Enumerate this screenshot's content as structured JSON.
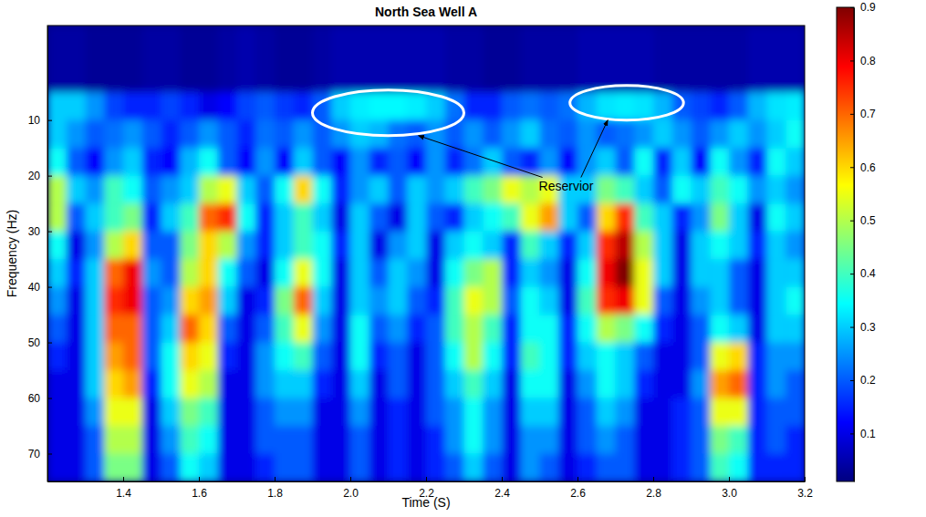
{
  "chart_data": {
    "type": "heatmap",
    "title": "North Sea Well A",
    "x_label": "Time (S)",
    "y_label": "Frequency (Hz)",
    "color": "jet",
    "xlim": [
      1.2,
      3.2
    ],
    "ylim": [
      -7,
      75
    ],
    "xticks": [
      1.4,
      1.6,
      1.8,
      {
        "value": 2,
        "label": "2.0"
      },
      2.2,
      2.4,
      2.6,
      2.8,
      {
        "value": 3,
        "label": "3.0"
      },
      3.2
    ],
    "yticks": [
      10,
      20,
      30,
      40,
      50,
      60,
      70
    ],
    "x_edges": [
      1.2,
      1.25,
      1.3,
      1.35,
      1.4,
      1.45,
      1.5,
      1.55,
      1.6,
      1.65,
      1.7,
      1.75,
      1.8,
      1.85,
      1.9,
      1.95,
      2.0,
      2.05,
      2.1,
      2.15,
      2.2,
      2.25,
      2.3,
      2.35,
      2.4,
      2.45,
      2.5,
      2.55,
      2.6,
      2.65,
      2.7,
      2.75,
      2.8,
      2.85,
      2.9,
      2.95,
      3.0,
      3.05,
      3.1,
      3.15,
      3.2
    ],
    "y_edges": [
      -7,
      5,
      10,
      15,
      20,
      25,
      30,
      35,
      40,
      45,
      50,
      55,
      60,
      65,
      70,
      75
    ],
    "cells": [
      [
        0.04,
        0.04,
        0.03,
        0.03,
        0.03,
        0.04,
        0.04,
        0.03,
        0.03,
        0.04,
        0.05,
        0.04,
        0.03,
        0.03,
        0.04,
        0.05,
        0.05,
        0.05,
        0.05,
        0.05,
        0.05,
        0.04,
        0.04,
        0.03,
        0.03,
        0.04,
        0.04,
        0.04,
        0.05,
        0.05,
        0.05,
        0.05,
        0.04,
        0.04,
        0.04,
        0.04,
        0.04,
        0.05,
        0.05,
        0.05
      ],
      [
        0.3,
        0.3,
        0.25,
        0.18,
        0.15,
        0.15,
        0.18,
        0.15,
        0.1,
        0.12,
        0.18,
        0.2,
        0.17,
        0.15,
        0.2,
        0.3,
        0.33,
        0.34,
        0.34,
        0.33,
        0.3,
        0.22,
        0.15,
        0.15,
        0.2,
        0.22,
        0.2,
        0.22,
        0.28,
        0.32,
        0.33,
        0.32,
        0.28,
        0.2,
        0.18,
        0.15,
        0.2,
        0.28,
        0.32,
        0.33
      ],
      [
        0.3,
        0.25,
        0.2,
        0.22,
        0.25,
        0.2,
        0.15,
        0.2,
        0.25,
        0.2,
        0.15,
        0.22,
        0.2,
        0.25,
        0.2,
        0.25,
        0.3,
        0.28,
        0.22,
        0.2,
        0.25,
        0.2,
        0.25,
        0.2,
        0.25,
        0.3,
        0.22,
        0.2,
        0.25,
        0.2,
        0.22,
        0.25,
        0.3,
        0.25,
        0.2,
        0.25,
        0.3,
        0.25,
        0.3,
        0.35
      ],
      [
        0.35,
        0.2,
        0.12,
        0.25,
        0.3,
        0.15,
        0.12,
        0.28,
        0.35,
        0.2,
        0.12,
        0.25,
        0.12,
        0.3,
        0.2,
        0.12,
        0.25,
        0.15,
        0.2,
        0.12,
        0.25,
        0.15,
        0.22,
        0.3,
        0.2,
        0.15,
        0.25,
        0.12,
        0.25,
        0.3,
        0.2,
        0.35,
        0.15,
        0.3,
        0.12,
        0.35,
        0.25,
        0.15,
        0.35,
        0.3
      ],
      [
        0.5,
        0.3,
        0.25,
        0.4,
        0.35,
        0.2,
        0.25,
        0.3,
        0.5,
        0.55,
        0.3,
        0.2,
        0.35,
        0.6,
        0.35,
        0.15,
        0.25,
        0.3,
        0.2,
        0.3,
        0.25,
        0.3,
        0.4,
        0.45,
        0.55,
        0.5,
        0.55,
        0.3,
        0.3,
        0.45,
        0.4,
        0.3,
        0.2,
        0.35,
        0.3,
        0.4,
        0.35,
        0.25,
        0.3,
        0.25
      ],
      [
        0.5,
        0.2,
        0.3,
        0.4,
        0.45,
        0.15,
        0.3,
        0.4,
        0.7,
        0.75,
        0.35,
        0.15,
        0.3,
        0.4,
        0.3,
        0.1,
        0.3,
        0.2,
        0.1,
        0.3,
        0.2,
        0.15,
        0.3,
        0.35,
        0.4,
        0.55,
        0.65,
        0.3,
        0.2,
        0.6,
        0.75,
        0.4,
        0.3,
        0.15,
        0.25,
        0.45,
        0.3,
        0.1,
        0.35,
        0.3
      ],
      [
        0.35,
        0.1,
        0.25,
        0.5,
        0.6,
        0.2,
        0.2,
        0.45,
        0.6,
        0.5,
        0.25,
        0.15,
        0.3,
        0.4,
        0.35,
        0.15,
        0.3,
        0.1,
        0.25,
        0.3,
        0.1,
        0.3,
        0.35,
        0.3,
        0.15,
        0.4,
        0.3,
        0.15,
        0.3,
        0.75,
        0.85,
        0.5,
        0.3,
        0.1,
        0.3,
        0.35,
        0.3,
        0.15,
        0.3,
        0.25
      ],
      [
        0.3,
        0.15,
        0.3,
        0.7,
        0.8,
        0.25,
        0.2,
        0.5,
        0.6,
        0.35,
        0.2,
        0.1,
        0.35,
        0.55,
        0.35,
        0.1,
        0.3,
        0.2,
        0.3,
        0.25,
        0.1,
        0.35,
        0.45,
        0.5,
        0.15,
        0.3,
        0.25,
        0.1,
        0.35,
        0.8,
        0.9,
        0.55,
        0.3,
        0.1,
        0.3,
        0.3,
        0.2,
        0.1,
        0.3,
        0.3
      ],
      [
        0.25,
        0.1,
        0.3,
        0.75,
        0.8,
        0.2,
        0.25,
        0.6,
        0.65,
        0.3,
        0.1,
        0.15,
        0.45,
        0.7,
        0.3,
        0.1,
        0.3,
        0.25,
        0.3,
        0.2,
        0.15,
        0.4,
        0.55,
        0.5,
        0.2,
        0.35,
        0.3,
        0.1,
        0.4,
        0.75,
        0.8,
        0.55,
        0.2,
        0.1,
        0.25,
        0.3,
        0.2,
        0.1,
        0.3,
        0.35
      ],
      [
        0.2,
        0.1,
        0.3,
        0.7,
        0.7,
        0.2,
        0.3,
        0.7,
        0.6,
        0.2,
        0.1,
        0.2,
        0.4,
        0.55,
        0.25,
        0.1,
        0.35,
        0.2,
        0.25,
        0.15,
        0.2,
        0.4,
        0.5,
        0.4,
        0.15,
        0.35,
        0.35,
        0.15,
        0.35,
        0.5,
        0.45,
        0.35,
        0.15,
        0.1,
        0.2,
        0.35,
        0.3,
        0.1,
        0.3,
        0.3
      ],
      [
        0.15,
        0.1,
        0.3,
        0.65,
        0.7,
        0.2,
        0.35,
        0.6,
        0.55,
        0.15,
        0.1,
        0.25,
        0.35,
        0.4,
        0.2,
        0.1,
        0.35,
        0.15,
        0.2,
        0.1,
        0.2,
        0.35,
        0.5,
        0.35,
        0.15,
        0.4,
        0.35,
        0.15,
        0.3,
        0.35,
        0.3,
        0.2,
        0.1,
        0.1,
        0.2,
        0.55,
        0.6,
        0.15,
        0.25,
        0.25
      ],
      [
        0.1,
        0.1,
        0.3,
        0.6,
        0.65,
        0.15,
        0.35,
        0.55,
        0.5,
        0.1,
        0.1,
        0.25,
        0.3,
        0.3,
        0.15,
        0.1,
        0.3,
        0.1,
        0.2,
        0.1,
        0.2,
        0.3,
        0.4,
        0.3,
        0.1,
        0.35,
        0.35,
        0.1,
        0.25,
        0.35,
        0.3,
        0.15,
        0.1,
        0.1,
        0.25,
        0.65,
        0.7,
        0.15,
        0.25,
        0.2
      ],
      [
        0.1,
        0.1,
        0.25,
        0.55,
        0.55,
        0.1,
        0.3,
        0.45,
        0.4,
        0.1,
        0.1,
        0.2,
        0.25,
        0.25,
        0.1,
        0.1,
        0.25,
        0.1,
        0.15,
        0.1,
        0.2,
        0.25,
        0.35,
        0.25,
        0.1,
        0.3,
        0.3,
        0.1,
        0.2,
        0.3,
        0.25,
        0.1,
        0.1,
        0.15,
        0.2,
        0.55,
        0.55,
        0.15,
        0.2,
        0.2
      ],
      [
        0.1,
        0.1,
        0.2,
        0.5,
        0.5,
        0.1,
        0.25,
        0.4,
        0.35,
        0.1,
        0.1,
        0.2,
        0.2,
        0.2,
        0.1,
        0.1,
        0.2,
        0.1,
        0.15,
        0.1,
        0.15,
        0.25,
        0.35,
        0.25,
        0.1,
        0.25,
        0.25,
        0.1,
        0.2,
        0.25,
        0.2,
        0.1,
        0.1,
        0.15,
        0.2,
        0.45,
        0.4,
        0.15,
        0.2,
        0.15
      ],
      [
        0.1,
        0.1,
        0.2,
        0.45,
        0.45,
        0.1,
        0.2,
        0.35,
        0.3,
        0.1,
        0.1,
        0.15,
        0.2,
        0.2,
        0.1,
        0.1,
        0.2,
        0.1,
        0.15,
        0.1,
        0.15,
        0.2,
        0.3,
        0.2,
        0.1,
        0.25,
        0.2,
        0.1,
        0.15,
        0.2,
        0.2,
        0.1,
        0.1,
        0.15,
        0.2,
        0.4,
        0.35,
        0.15,
        0.15,
        0.15
      ]
    ],
    "colorbar": {
      "range": [
        0.01,
        0.9
      ],
      "ticks": [
        0.1,
        0.2,
        0.3,
        0.4,
        0.5,
        0.6,
        0.7,
        0.8,
        0.9
      ]
    },
    "highlights": [
      {
        "x0": 1.9,
        "x1": 2.3,
        "y0": 4.6,
        "y1": 12.8
      },
      {
        "x0": 2.58,
        "x1": 2.88,
        "y0": 3.8,
        "y1": 10
      }
    ],
    "annotations": [
      {
        "text": "Reservior",
        "x": 2.57,
        "y": 22,
        "targets": [
          {
            "x": 2.18,
            "y": 12.8
          },
          {
            "x": 2.68,
            "y": 10
          }
        ]
      }
    ]
  }
}
